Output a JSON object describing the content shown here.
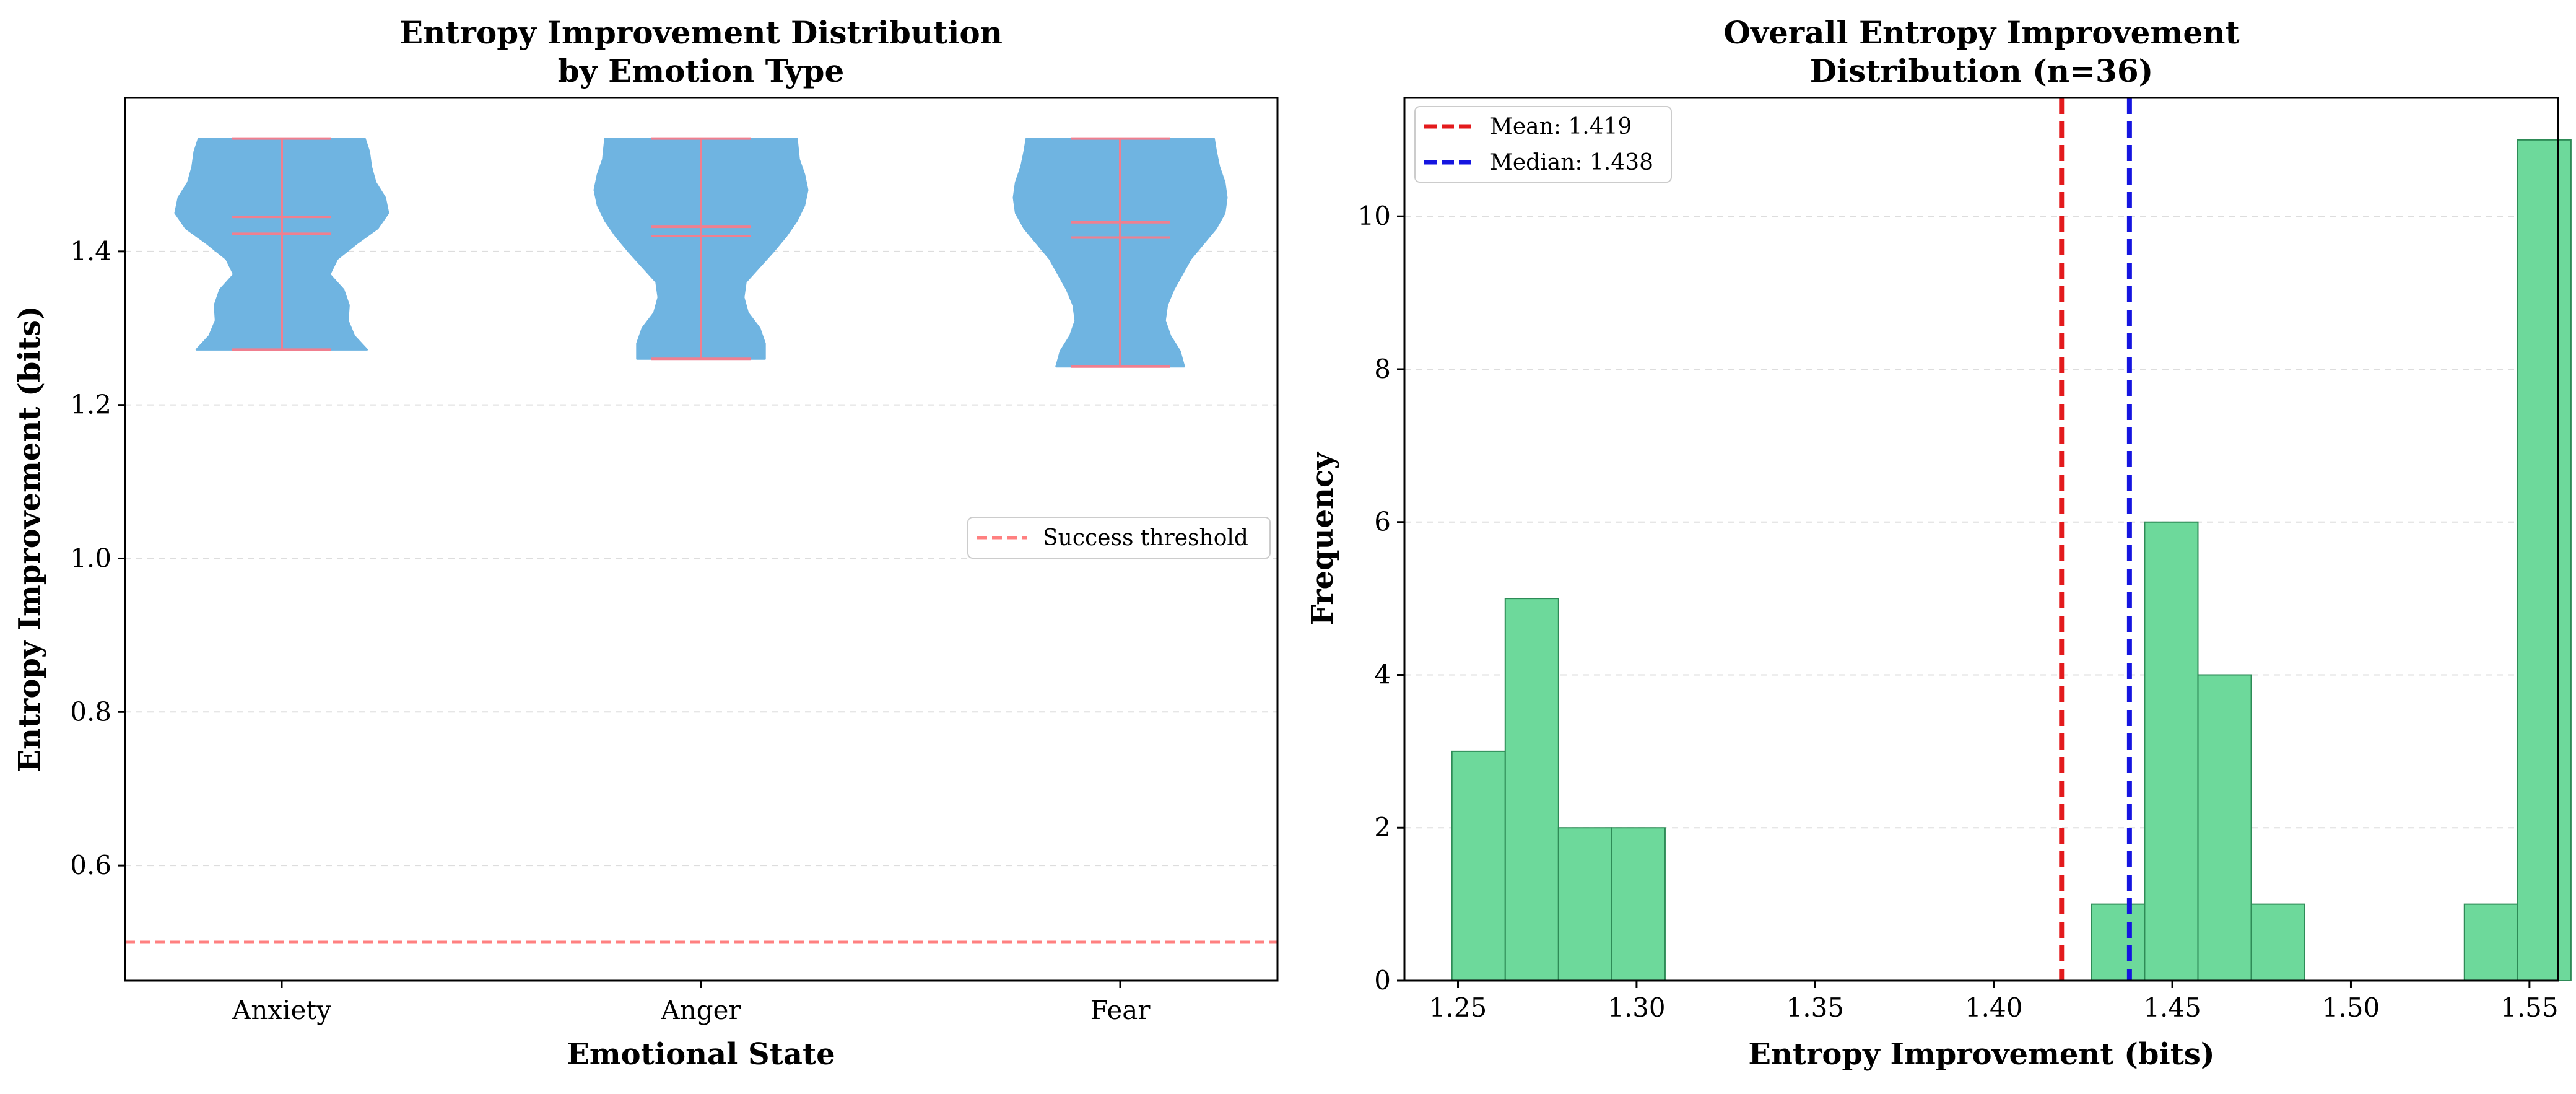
{
  "chart_data": [
    {
      "type": "violin",
      "title": [
        "Entropy Improvement Distribution",
        "by Emotion Type"
      ],
      "xlabel": "Emotional State",
      "ylabel": "Entropy Improvement (bits)",
      "categories": [
        "Anxiety",
        "Anger",
        "Fear"
      ],
      "ylim": [
        0.45,
        1.6
      ],
      "yticks": [
        0.6,
        0.8,
        1.0,
        1.2,
        1.4
      ],
      "ytick_labels": [
        "0.6",
        "0.8",
        "1.0",
        "1.2",
        "1.4"
      ],
      "grid": "y-dashed",
      "violins": [
        {
          "category": "Anxiety",
          "min": 1.272,
          "max": 1.547,
          "mean": 1.423,
          "median": 1.445,
          "profile": [
            [
              1.272,
              0.8
            ],
            [
              1.29,
              0.68
            ],
            [
              1.31,
              0.62
            ],
            [
              1.33,
              0.63
            ],
            [
              1.35,
              0.58
            ],
            [
              1.37,
              0.45
            ],
            [
              1.39,
              0.52
            ],
            [
              1.41,
              0.7
            ],
            [
              1.43,
              0.9
            ],
            [
              1.45,
              1.0
            ],
            [
              1.47,
              0.97
            ],
            [
              1.49,
              0.88
            ],
            [
              1.51,
              0.84
            ],
            [
              1.53,
              0.82
            ],
            [
              1.547,
              0.78
            ]
          ]
        },
        {
          "category": "Anger",
          "min": 1.26,
          "max": 1.547,
          "mean": 1.42,
          "median": 1.432,
          "profile": [
            [
              1.26,
              0.6
            ],
            [
              1.28,
              0.6
            ],
            [
              1.3,
              0.55
            ],
            [
              1.32,
              0.44
            ],
            [
              1.34,
              0.4
            ],
            [
              1.36,
              0.42
            ],
            [
              1.38,
              0.55
            ],
            [
              1.4,
              0.68
            ],
            [
              1.42,
              0.8
            ],
            [
              1.44,
              0.9
            ],
            [
              1.46,
              0.97
            ],
            [
              1.48,
              1.0
            ],
            [
              1.5,
              0.97
            ],
            [
              1.52,
              0.92
            ],
            [
              1.547,
              0.9
            ]
          ]
        },
        {
          "category": "Fear",
          "min": 1.25,
          "max": 1.547,
          "mean": 1.418,
          "median": 1.438,
          "profile": [
            [
              1.25,
              0.6
            ],
            [
              1.27,
              0.56
            ],
            [
              1.29,
              0.47
            ],
            [
              1.31,
              0.42
            ],
            [
              1.33,
              0.44
            ],
            [
              1.35,
              0.5
            ],
            [
              1.37,
              0.58
            ],
            [
              1.39,
              0.66
            ],
            [
              1.41,
              0.78
            ],
            [
              1.43,
              0.9
            ],
            [
              1.45,
              0.98
            ],
            [
              1.47,
              1.0
            ],
            [
              1.49,
              0.98
            ],
            [
              1.51,
              0.93
            ],
            [
              1.53,
              0.9
            ],
            [
              1.547,
              0.88
            ]
          ]
        }
      ],
      "threshold": {
        "value": 0.5,
        "label": "Success threshold",
        "color": "#ff6b6b"
      },
      "colors": {
        "violin_fill": "#6fb4e1",
        "stats_lines": "#f07f8f"
      },
      "legend_position": "center-right"
    },
    {
      "type": "histogram",
      "title": [
        "Overall Entropy Improvement",
        "Distribution (n=36)"
      ],
      "xlabel": "Entropy Improvement (bits)",
      "ylabel": "Frequency",
      "xlim": [
        1.235,
        1.558
      ],
      "ylim": [
        0,
        11.55
      ],
      "xticks": [
        1.25,
        1.3,
        1.35,
        1.4,
        1.45,
        1.5,
        1.55
      ],
      "xtick_labels": [
        "1.25",
        "1.30",
        "1.35",
        "1.40",
        "1.45",
        "1.50",
        "1.55"
      ],
      "yticks": [
        0,
        2,
        4,
        6,
        8,
        10
      ],
      "ytick_labels": [
        "0",
        "2",
        "4",
        "6",
        "8",
        "10"
      ],
      "grid": "y-dashed",
      "bin_start": 1.2483,
      "bin_width": 0.01492,
      "counts": [
        3,
        5,
        2,
        2,
        0,
        0,
        0,
        0,
        0,
        0,
        0,
        0,
        1,
        6,
        4,
        1,
        0,
        0,
        0,
        1,
        11
      ],
      "bar_color": "#6dd99b",
      "bar_edge_color": "#2e8b57",
      "mean": {
        "value": 1.419,
        "label": "Mean: 1.419",
        "color": "#e31a1c"
      },
      "median": {
        "value": 1.438,
        "label": "Median: 1.438",
        "color": "#1515e0"
      },
      "legend_position": "upper-left"
    }
  ]
}
